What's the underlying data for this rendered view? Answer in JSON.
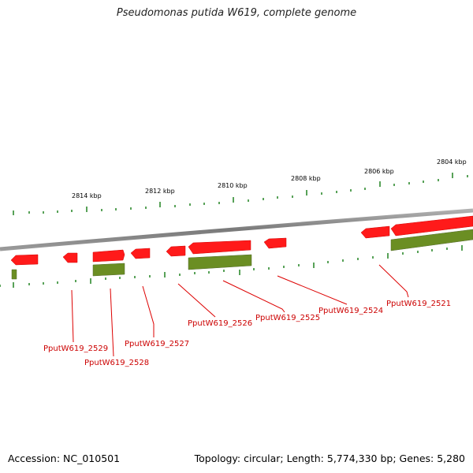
{
  "title": "Pseudomonas putida W619, complete genome",
  "footer": {
    "accession": "Accession: NC_010501",
    "summary": "Topology: circular; Length: 5,774,330 bp; Genes: 5,280"
  },
  "colors": {
    "forward_gene": "#ff1a1a",
    "cds": "#6b8e23",
    "backbone": "#8a8a8a",
    "ticks": "#2e8b2e",
    "label": "#cc0000"
  },
  "scale_labels": [
    "2814 kbp",
    "2812 kbp",
    "2810 kbp",
    "2808 kbp",
    "2806 kbp",
    "2804 kbp"
  ],
  "gene_labels": [
    "PputW619_2529",
    "PputW619_2528",
    "PputW619_2527",
    "PputW619_2526",
    "PputW619_2525",
    "PputW619_2524",
    "PputW619_2521"
  ]
}
